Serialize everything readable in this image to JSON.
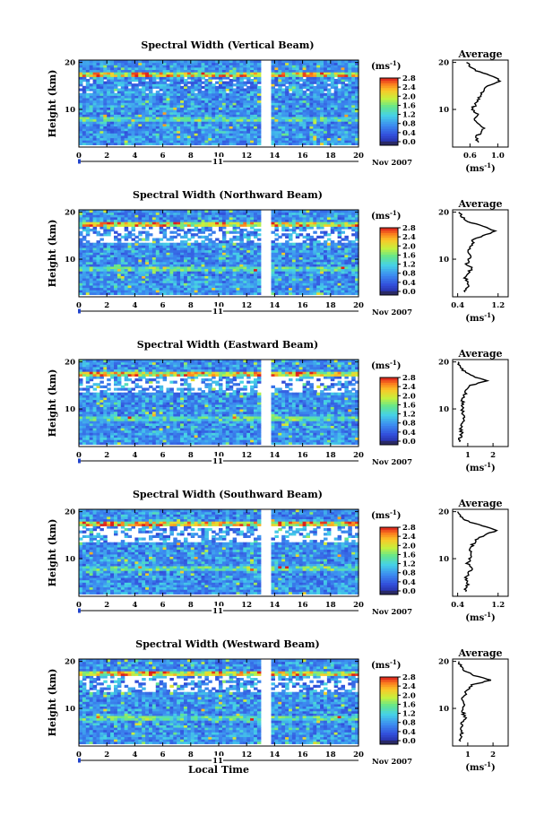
{
  "chart_data": [
    {
      "type": "heatmap",
      "title": "Spectral Width (Vertical Beam)",
      "ylabel": "Height (km)",
      "xlabel": "",
      "x_ticks": [
        "0",
        "2",
        "4",
        "6",
        "8",
        "10",
        "12",
        "14",
        "16",
        "18",
        "20"
      ],
      "y_ticks": [
        "10",
        "20"
      ],
      "xlim": [
        0,
        20
      ],
      "ylim": [
        2,
        20.5
      ],
      "gap": [
        13.1,
        13.6
      ],
      "date_day": "11",
      "date_label": "Nov 2007",
      "colorbar": {
        "unit": "(ms",
        "unit_exp": "-1",
        "unit_close": ")",
        "ticks": [
          "2.8",
          "2.4",
          "2.0",
          "1.6",
          "1.2",
          "0.8",
          "0.4",
          "0.0"
        ],
        "range": [
          0,
          2.8
        ]
      },
      "avg_profile": {
        "title": "Average",
        "x_ticks": [
          "0.6",
          "1.0"
        ],
        "xlim": [
          0.35,
          1.15
        ],
        "y_ticks": [
          "10",
          "20"
        ],
        "xlabel_unit": "(ms",
        "xlabel_exp": "-1",
        "xlabel_close": ")",
        "height": [
          3,
          4,
          5,
          6,
          7,
          8,
          9,
          10,
          11,
          12,
          13,
          14,
          15,
          16,
          17,
          18,
          19,
          20
        ],
        "width": [
          0.72,
          0.68,
          0.75,
          0.8,
          0.72,
          0.65,
          0.7,
          0.62,
          0.68,
          0.72,
          0.75,
          0.78,
          0.85,
          1.02,
          0.95,
          0.72,
          0.62,
          0.55
        ]
      }
    },
    {
      "type": "heatmap",
      "title": "Spectral Width (Northward Beam)",
      "ylabel": "Height (km)",
      "xlabel": "",
      "x_ticks": [
        "0",
        "2",
        "4",
        "6",
        "8",
        "10",
        "12",
        "14",
        "16",
        "18",
        "20"
      ],
      "y_ticks": [
        "10",
        "20"
      ],
      "xlim": [
        0,
        20
      ],
      "ylim": [
        2,
        20.5
      ],
      "gap": [
        13.1,
        13.6
      ],
      "date_day": "11",
      "date_label": "Nov 2007",
      "colorbar": {
        "unit": "(ms",
        "unit_exp": "-1",
        "unit_close": ")",
        "ticks": [
          "2.8",
          "2.4",
          "2.0",
          "1.6",
          "1.2",
          "0.8",
          "0.4",
          "0.0"
        ],
        "range": [
          0,
          2.8
        ]
      },
      "avg_profile": {
        "title": "Average",
        "x_ticks": [
          "0.4",
          "1.2"
        ],
        "xlim": [
          0.3,
          1.4
        ],
        "y_ticks": [
          "10",
          "20"
        ],
        "xlabel_unit": "(ms",
        "xlabel_exp": "-1",
        "xlabel_close": ")",
        "height": [
          3,
          4,
          5,
          6,
          7,
          8,
          9,
          10,
          11,
          12,
          13,
          14,
          15,
          16,
          17,
          18,
          19,
          20
        ],
        "width": [
          0.55,
          0.58,
          0.62,
          0.55,
          0.6,
          0.68,
          0.58,
          0.62,
          0.66,
          0.6,
          0.7,
          0.68,
          0.9,
          1.15,
          0.9,
          0.62,
          0.48,
          0.42
        ]
      }
    },
    {
      "type": "heatmap",
      "title": "Spectral Width (Eastward Beam)",
      "ylabel": "Height (km)",
      "xlabel": "",
      "x_ticks": [
        "0",
        "2",
        "4",
        "6",
        "8",
        "10",
        "12",
        "14",
        "16",
        "18",
        "20"
      ],
      "y_ticks": [
        "10",
        "20"
      ],
      "xlim": [
        0,
        20
      ],
      "ylim": [
        2,
        20.5
      ],
      "gap": [
        13.1,
        13.6
      ],
      "date_day": "11",
      "date_label": "Nov 2007",
      "colorbar": {
        "unit": "(ms",
        "unit_exp": "-1",
        "unit_close": ")",
        "ticks": [
          "2.8",
          "2.4",
          "2.0",
          "1.6",
          "1.2",
          "0.8",
          "0.4",
          "0.0"
        ],
        "range": [
          0,
          2.8
        ]
      },
      "avg_profile": {
        "title": "Average",
        "x_ticks": [
          "1",
          "2"
        ],
        "xlim": [
          0.4,
          2.6
        ],
        "y_ticks": [
          "10",
          "20"
        ],
        "xlabel_unit": "(ms",
        "xlabel_exp": "-1",
        "xlabel_close": ")",
        "height": [
          3,
          4,
          5,
          6,
          7,
          8,
          9,
          10,
          11,
          12,
          13,
          14,
          15,
          16,
          17,
          18,
          19,
          20
        ],
        "width": [
          0.68,
          0.7,
          0.75,
          0.72,
          0.78,
          0.85,
          0.8,
          0.78,
          0.82,
          0.78,
          0.88,
          0.95,
          1.1,
          1.75,
          1.2,
          0.85,
          0.72,
          0.62
        ]
      }
    },
    {
      "type": "heatmap",
      "title": "Spectral Width (Southward Beam)",
      "ylabel": "Height (km)",
      "xlabel": "",
      "x_ticks": [
        "0",
        "2",
        "4",
        "6",
        "8",
        "10",
        "12",
        "14",
        "16",
        "18",
        "20"
      ],
      "y_ticks": [
        "10",
        "20"
      ],
      "xlim": [
        0,
        20
      ],
      "ylim": [
        2,
        20.5
      ],
      "gap": [
        13.1,
        13.6
      ],
      "date_day": "11",
      "date_label": "Nov 2007",
      "colorbar": {
        "unit": "(ms",
        "unit_exp": "-1",
        "unit_close": ")",
        "ticks": [
          "2.8",
          "2.4",
          "2.0",
          "1.6",
          "1.2",
          "0.8",
          "0.4",
          "0.0"
        ],
        "range": [
          0,
          2.8
        ]
      },
      "avg_profile": {
        "title": "Average",
        "x_ticks": [
          "0.4",
          "1.2"
        ],
        "xlim": [
          0.3,
          1.4
        ],
        "y_ticks": [
          "10",
          "20"
        ],
        "xlabel_unit": "(ms",
        "xlabel_exp": "-1",
        "xlabel_close": ")",
        "height": [
          3,
          4,
          5,
          6,
          7,
          8,
          9,
          10,
          11,
          12,
          13,
          14,
          15,
          16,
          17,
          18,
          19,
          20
        ],
        "width": [
          0.55,
          0.58,
          0.6,
          0.56,
          0.62,
          0.7,
          0.6,
          0.64,
          0.68,
          0.62,
          0.7,
          0.78,
          0.92,
          1.18,
          0.88,
          0.6,
          0.45,
          0.4
        ]
      }
    },
    {
      "type": "heatmap",
      "title": "Spectral Width (Westward Beam)",
      "ylabel": "Height (km)",
      "xlabel": "Local Time",
      "x_ticks": [
        "0",
        "2",
        "4",
        "6",
        "8",
        "10",
        "12",
        "14",
        "16",
        "18",
        "20"
      ],
      "y_ticks": [
        "10",
        "20"
      ],
      "xlim": [
        0,
        20
      ],
      "ylim": [
        2,
        20.5
      ],
      "gap": [
        13.1,
        13.6
      ],
      "date_day": "11",
      "date_label": "Nov 2007",
      "colorbar": {
        "unit": "(ms",
        "unit_exp": "-1",
        "unit_close": ")",
        "ticks": [
          "2.8",
          "2.4",
          "2.0",
          "1.6",
          "1.2",
          "0.8",
          "0.4",
          "0.0"
        ],
        "range": [
          0,
          2.8
        ]
      },
      "avg_profile": {
        "title": "Average",
        "x_ticks": [
          "1",
          "2"
        ],
        "xlim": [
          0.4,
          2.6
        ],
        "y_ticks": [
          "10",
          "20"
        ],
        "xlabel_unit": "(ms",
        "xlabel_exp": "-1",
        "xlabel_close": ")",
        "height": [
          3,
          4,
          5,
          6,
          7,
          8,
          9,
          10,
          11,
          12,
          13,
          14,
          15,
          16,
          17,
          18,
          19,
          20
        ],
        "width": [
          0.7,
          0.72,
          0.78,
          0.74,
          0.8,
          0.9,
          0.82,
          0.8,
          0.84,
          0.8,
          0.9,
          0.98,
          1.15,
          1.9,
          1.25,
          0.88,
          0.72,
          0.65
        ]
      }
    }
  ]
}
